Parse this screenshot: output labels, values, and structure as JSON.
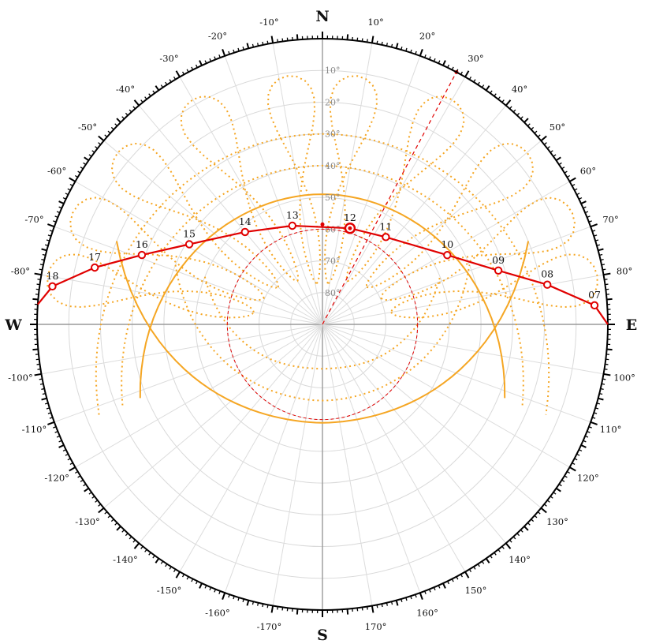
{
  "compass": {
    "north": "N",
    "east": "E",
    "south": "S",
    "west": "W"
  },
  "azimuth_labels": [
    {
      "deg": 10,
      "text": "10°"
    },
    {
      "deg": 20,
      "text": "20°"
    },
    {
      "deg": 30,
      "text": "30°"
    },
    {
      "deg": 40,
      "text": "40°"
    },
    {
      "deg": 50,
      "text": "50°"
    },
    {
      "deg": 60,
      "text": "60°"
    },
    {
      "deg": 70,
      "text": "70°"
    },
    {
      "deg": 80,
      "text": "80°"
    },
    {
      "deg": 100,
      "text": "100°"
    },
    {
      "deg": 110,
      "text": "110°"
    },
    {
      "deg": 120,
      "text": "120°"
    },
    {
      "deg": 130,
      "text": "130°"
    },
    {
      "deg": 140,
      "text": "140°"
    },
    {
      "deg": 150,
      "text": "150°"
    },
    {
      "deg": 160,
      "text": "160°"
    },
    {
      "deg": 170,
      "text": "170°"
    },
    {
      "deg": -10,
      "text": "-10°"
    },
    {
      "deg": -20,
      "text": "-20°"
    },
    {
      "deg": -30,
      "text": "-30°"
    },
    {
      "deg": -40,
      "text": "-40°"
    },
    {
      "deg": -50,
      "text": "-50°"
    },
    {
      "deg": -60,
      "text": "-60°"
    },
    {
      "deg": -70,
      "text": "-70°"
    },
    {
      "deg": -80,
      "text": "-80°"
    },
    {
      "deg": -100,
      "text": "-100°"
    },
    {
      "deg": -110,
      "text": "-110°"
    },
    {
      "deg": -120,
      "text": "-120°"
    },
    {
      "deg": -130,
      "text": "-130°"
    },
    {
      "deg": -140,
      "text": "-140°"
    },
    {
      "deg": -150,
      "text": "-150°"
    },
    {
      "deg": -160,
      "text": "-160°"
    },
    {
      "deg": -170,
      "text": "-170°"
    }
  ],
  "altitude_labels": [
    {
      "alt": 10,
      "text": "10°"
    },
    {
      "alt": 20,
      "text": "20°"
    },
    {
      "alt": 30,
      "text": "30°"
    },
    {
      "alt": 40,
      "text": "40°"
    },
    {
      "alt": 50,
      "text": "50°"
    },
    {
      "alt": 60,
      "text": "60°"
    },
    {
      "alt": 70,
      "text": "70°"
    },
    {
      "alt": 80,
      "text": "80°"
    }
  ],
  "sun_path_today": {
    "color": "#e00000",
    "hours": [
      {
        "label": "07",
        "az": 86,
        "alt": 4
      },
      {
        "label": "08",
        "az": 80,
        "alt": 18
      },
      {
        "label": "09",
        "az": 73,
        "alt": 32
      },
      {
        "label": "10",
        "az": 61,
        "alt": 45
      },
      {
        "label": "11",
        "az": 36,
        "alt": 56
      },
      {
        "label": "12",
        "az": 16,
        "alt": 58.5,
        "current": true
      },
      {
        "label": "13",
        "az": -17,
        "alt": 57.5
      },
      {
        "label": "14",
        "az": -40,
        "alt": 52
      },
      {
        "label": "15",
        "az": -59,
        "alt": 41
      },
      {
        "label": "16",
        "az": -69,
        "alt": 29
      },
      {
        "label": "17",
        "az": -76,
        "alt": 16
      },
      {
        "label": "18",
        "az": -82,
        "alt": 4
      }
    ]
  },
  "seasonal_bounds": {
    "color": "#f5a623",
    "summer_solstice": {
      "noon_alt": 49,
      "edge_alt": 28
    },
    "winter_solstice": {
      "noon_alt": 59,
      "edge_alt": 20
    }
  },
  "sun_direction_line": {
    "az": 28,
    "color": "#e00000"
  },
  "zenith_circle": {
    "alt": 60,
    "color": "#e00000"
  }
}
